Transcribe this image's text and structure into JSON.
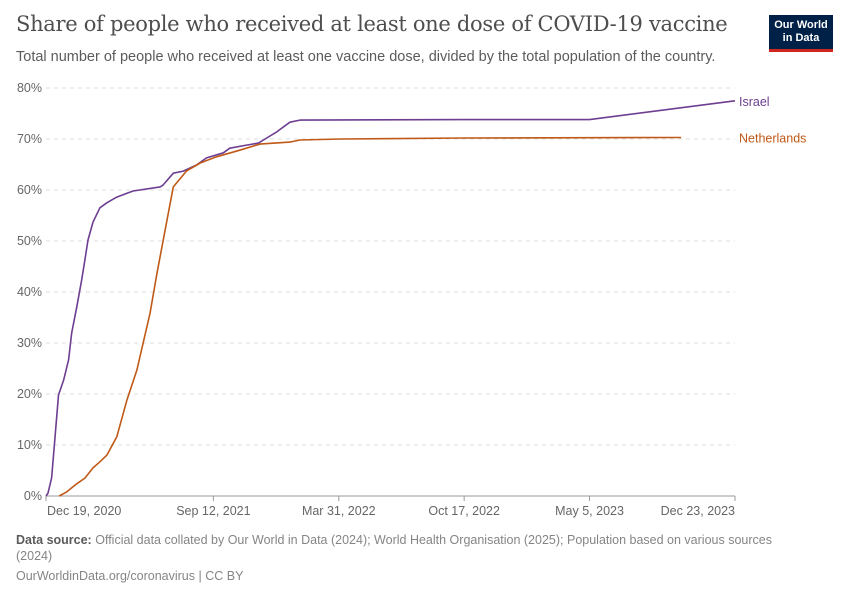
{
  "header": {
    "title": "Share of people who received at least one dose of COVID-19 vaccine",
    "subtitle": "Total number of people who received at least one vaccine dose, divided by the total population of the country.",
    "logo": "Our World in Data"
  },
  "footer": {
    "source_label": "Data source:",
    "source_text": "Official data collated by Our World in Data (2024); World Health Organisation (2025); Population based on various sources (2024)",
    "url": "OurWorldinData.org/coronavirus | CC BY"
  },
  "chart_data": {
    "type": "line",
    "title": "Share of people who received at least one dose of COVID-19 vaccine",
    "xlim": [
      "2020-12-19",
      "2023-12-23"
    ],
    "ylim": [
      0,
      80
    ],
    "y_ticks": [
      0,
      10,
      20,
      30,
      40,
      50,
      60,
      70,
      80
    ],
    "y_tick_labels": [
      "0%",
      "10%",
      "20%",
      "30%",
      "40%",
      "50%",
      "60%",
      "70%",
      "80%"
    ],
    "x_ticks": [
      "2020-12-19",
      "2021-09-12",
      "2022-03-31",
      "2022-10-17",
      "2023-05-05",
      "2023-12-23"
    ],
    "x_tick_labels": [
      "Dec 19, 2020",
      "Sep 12, 2021",
      "Mar 31, 2022",
      "Oct 17, 2022",
      "May 5, 2023",
      "Dec 23, 2023"
    ],
    "grid": "horizontal dashed",
    "legend": "inline labels at line ends (right)",
    "series": [
      {
        "name": "Israel",
        "color": "#6D3E91",
        "points": [
          [
            "2020-12-19",
            0
          ],
          [
            "2020-12-22",
            0.5
          ],
          [
            "2020-12-28",
            3.5
          ],
          [
            "2021-01-02",
            11
          ],
          [
            "2021-01-08",
            19.8
          ],
          [
            "2021-01-16",
            22.7
          ],
          [
            "2021-01-24",
            26.7
          ],
          [
            "2021-01-29",
            32
          ],
          [
            "2021-02-06",
            37
          ],
          [
            "2021-02-14",
            42.4
          ],
          [
            "2021-02-19",
            46.3
          ],
          [
            "2021-02-24",
            50.2
          ],
          [
            "2021-03-04",
            53.7
          ],
          [
            "2021-03-15",
            56.5
          ],
          [
            "2021-03-26",
            57.5
          ],
          [
            "2021-04-11",
            58.6
          ],
          [
            "2021-05-07",
            59.8
          ],
          [
            "2021-06-19",
            60.6
          ],
          [
            "2021-06-24",
            61
          ],
          [
            "2021-07-10",
            63.3
          ],
          [
            "2021-07-26",
            63.7
          ],
          [
            "2021-08-16",
            64.9
          ],
          [
            "2021-09-01",
            66.3
          ],
          [
            "2021-09-28",
            67.3
          ],
          [
            "2021-10-08",
            68.2
          ],
          [
            "2021-11-04",
            68.8
          ],
          [
            "2021-11-23",
            69.2
          ],
          [
            "2021-12-06",
            70.2
          ],
          [
            "2021-12-22",
            71.4
          ],
          [
            "2022-01-12",
            73.3
          ],
          [
            "2022-01-28",
            73.7
          ],
          [
            "2022-10-17",
            73.8
          ],
          [
            "2023-05-05",
            73.8
          ],
          [
            "2023-12-23",
            77.5
          ]
        ]
      },
      {
        "name": "Netherlands",
        "color": "#C05917",
        "points": [
          [
            "2021-01-09",
            0
          ],
          [
            "2021-01-21",
            0.8
          ],
          [
            "2021-02-06",
            2.4
          ],
          [
            "2021-02-19",
            3.5
          ],
          [
            "2021-03-04",
            5.5
          ],
          [
            "2021-03-15",
            6.7
          ],
          [
            "2021-03-26",
            8
          ],
          [
            "2021-04-11",
            11.6
          ],
          [
            "2021-04-27",
            18.8
          ],
          [
            "2021-05-13",
            24.7
          ],
          [
            "2021-06-03",
            35.9
          ],
          [
            "2021-06-14",
            43.7
          ],
          [
            "2021-06-30",
            54.1
          ],
          [
            "2021-07-10",
            60.6
          ],
          [
            "2021-07-31",
            63.7
          ],
          [
            "2021-08-22",
            65.3
          ],
          [
            "2021-09-17",
            66.5
          ],
          [
            "2021-10-24",
            67.8
          ],
          [
            "2021-11-25",
            69
          ],
          [
            "2022-01-12",
            69.4
          ],
          [
            "2022-01-28",
            69.8
          ],
          [
            "2022-04-03",
            70
          ],
          [
            "2022-10-17",
            70.2
          ],
          [
            "2023-09-28",
            70.3
          ]
        ]
      }
    ]
  }
}
